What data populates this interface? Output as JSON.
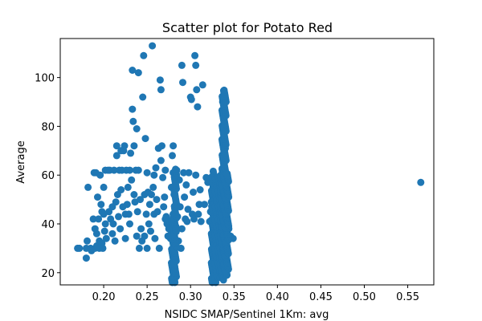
{
  "chart_data": {
    "type": "scatter",
    "title": "Scatter plot for Potato Red",
    "xlabel": "NSIDC SMAP/Sentinel 1Km: avg",
    "ylabel": "Average",
    "xlim": [
      0.15,
      0.58
    ],
    "ylim": [
      15,
      116
    ],
    "xticks": [
      "0.20",
      "0.25",
      "0.30",
      "0.35",
      "0.40",
      "0.45",
      "0.50",
      "0.55"
    ],
    "yticks": [
      "20",
      "40",
      "60",
      "80",
      "100"
    ],
    "marker_color": "#1f77b4",
    "grid": false,
    "series": [
      {
        "points": [
          [
            0.17,
            30
          ],
          [
            0.172,
            30
          ],
          [
            0.18,
            26
          ],
          [
            0.18,
            30
          ],
          [
            0.181,
            33
          ],
          [
            0.182,
            55
          ],
          [
            0.185,
            30
          ],
          [
            0.186,
            29
          ],
          [
            0.188,
            42
          ],
          [
            0.189,
            61
          ],
          [
            0.19,
            30
          ],
          [
            0.19,
            38
          ],
          [
            0.191,
            61
          ],
          [
            0.192,
            31
          ],
          [
            0.192,
            36
          ],
          [
            0.193,
            51
          ],
          [
            0.194,
            42
          ],
          [
            0.195,
            30
          ],
          [
            0.195,
            33
          ],
          [
            0.196,
            60
          ],
          [
            0.197,
            48
          ],
          [
            0.198,
            45
          ],
          [
            0.198,
            32
          ],
          [
            0.199,
            30
          ],
          [
            0.2,
            55
          ],
          [
            0.2,
            44
          ],
          [
            0.201,
            37
          ],
          [
            0.202,
            40
          ],
          [
            0.202,
            62
          ],
          [
            0.203,
            34
          ],
          [
            0.205,
            62
          ],
          [
            0.206,
            45
          ],
          [
            0.207,
            62
          ],
          [
            0.208,
            42
          ],
          [
            0.21,
            47
          ],
          [
            0.21,
            36
          ],
          [
            0.211,
            40
          ],
          [
            0.212,
            62
          ],
          [
            0.213,
            33
          ],
          [
            0.214,
            49
          ],
          [
            0.215,
            68
          ],
          [
            0.215,
            72
          ],
          [
            0.216,
            52
          ],
          [
            0.217,
            43
          ],
          [
            0.218,
            62
          ],
          [
            0.219,
            38
          ],
          [
            0.22,
            70
          ],
          [
            0.22,
            54
          ],
          [
            0.221,
            62
          ],
          [
            0.222,
            47
          ],
          [
            0.223,
            70
          ],
          [
            0.224,
            72
          ],
          [
            0.225,
            44
          ],
          [
            0.225,
            34
          ],
          [
            0.226,
            62
          ],
          [
            0.227,
            48
          ],
          [
            0.228,
            55
          ],
          [
            0.229,
            44
          ],
          [
            0.23,
            40
          ],
          [
            0.23,
            62
          ],
          [
            0.231,
            69
          ],
          [
            0.232,
            58
          ],
          [
            0.233,
            87
          ],
          [
            0.233,
            103
          ],
          [
            0.234,
            82
          ],
          [
            0.235,
            52
          ],
          [
            0.235,
            72
          ],
          [
            0.236,
            49
          ],
          [
            0.237,
            62
          ],
          [
            0.238,
            79
          ],
          [
            0.238,
            35
          ],
          [
            0.239,
            45
          ],
          [
            0.24,
            102
          ],
          [
            0.24,
            62
          ],
          [
            0.241,
            30
          ],
          [
            0.242,
            50
          ],
          [
            0.243,
            38
          ],
          [
            0.244,
            33
          ],
          [
            0.245,
            92
          ],
          [
            0.246,
            109
          ],
          [
            0.247,
            52
          ],
          [
            0.247,
            35
          ],
          [
            0.248,
            75
          ],
          [
            0.249,
            44
          ],
          [
            0.25,
            61
          ],
          [
            0.25,
            30
          ],
          [
            0.251,
            53
          ],
          [
            0.252,
            40
          ],
          [
            0.253,
            48
          ],
          [
            0.254,
            37
          ],
          [
            0.255,
            52
          ],
          [
            0.256,
            113
          ],
          [
            0.257,
            55
          ],
          [
            0.258,
            60
          ],
          [
            0.258,
            44
          ],
          [
            0.259,
            34
          ],
          [
            0.26,
            63
          ],
          [
            0.261,
            50
          ],
          [
            0.262,
            45
          ],
          [
            0.263,
            71
          ],
          [
            0.264,
            30
          ],
          [
            0.265,
            99
          ],
          [
            0.266,
            66
          ],
          [
            0.266,
            95
          ],
          [
            0.267,
            72
          ],
          [
            0.268,
            59
          ],
          [
            0.269,
            47
          ],
          [
            0.27,
            51
          ],
          [
            0.271,
            42
          ],
          [
            0.271,
            62
          ],
          [
            0.272,
            43
          ],
          [
            0.273,
            40
          ],
          [
            0.274,
            35
          ],
          [
            0.275,
            38
          ],
          [
            0.276,
            41
          ],
          [
            0.277,
            34
          ],
          [
            0.278,
            37
          ],
          [
            0.278,
            55
          ],
          [
            0.279,
            68
          ],
          [
            0.28,
            72
          ],
          [
            0.28,
            61
          ],
          [
            0.281,
            52
          ],
          [
            0.282,
            45
          ],
          [
            0.283,
            39
          ],
          [
            0.284,
            62
          ],
          [
            0.285,
            43
          ],
          [
            0.286,
            33
          ],
          [
            0.287,
            58
          ],
          [
            0.288,
            47
          ],
          [
            0.289,
            30
          ],
          [
            0.29,
            38
          ],
          [
            0.29,
            105
          ],
          [
            0.291,
            98
          ],
          [
            0.292,
            61
          ],
          [
            0.293,
            51
          ],
          [
            0.294,
            42
          ],
          [
            0.295,
            56
          ],
          [
            0.296,
            41
          ],
          [
            0.297,
            46
          ],
          [
            0.298,
            61
          ],
          [
            0.3,
            92
          ],
          [
            0.301,
            91
          ],
          [
            0.302,
            44
          ],
          [
            0.303,
            53
          ],
          [
            0.304,
            42
          ],
          [
            0.305,
            109
          ],
          [
            0.306,
            105
          ],
          [
            0.306,
            60
          ],
          [
            0.307,
            95
          ],
          [
            0.308,
            88
          ],
          [
            0.309,
            44
          ],
          [
            0.31,
            48
          ],
          [
            0.311,
            54
          ],
          [
            0.312,
            41
          ],
          [
            0.314,
            97
          ],
          [
            0.316,
            48
          ],
          [
            0.318,
            59
          ],
          [
            0.32,
            57
          ],
          [
            0.322,
            41
          ],
          [
            0.323,
            45
          ],
          [
            0.324,
            49
          ],
          [
            0.326,
            55
          ],
          [
            0.328,
            31
          ],
          [
            0.33,
            45
          ],
          [
            0.332,
            55
          ],
          [
            0.334,
            48
          ],
          [
            0.336,
            40
          ],
          [
            0.337,
            90
          ],
          [
            0.338,
            87
          ],
          [
            0.339,
            80
          ],
          [
            0.34,
            71
          ],
          [
            0.341,
            60
          ],
          [
            0.342,
            52
          ],
          [
            0.343,
            46
          ],
          [
            0.344,
            38
          ],
          [
            0.346,
            35
          ],
          [
            0.349,
            34
          ],
          [
            0.565,
            57
          ]
        ],
        "columns": [
          {
            "x": 0.279,
            "ymin": 16,
            "ymax": 44
          },
          {
            "x": 0.282,
            "ymin": 16,
            "ymax": 63
          },
          {
            "x": 0.325,
            "ymin": 16,
            "ymax": 62
          },
          {
            "x": 0.329,
            "ymin": 16,
            "ymax": 59
          },
          {
            "x": 0.333,
            "ymin": 20,
            "ymax": 60
          },
          {
            "x": 0.335,
            "ymin": 18,
            "ymax": 61
          },
          {
            "x": 0.337,
            "ymin": 17,
            "ymax": 95
          },
          {
            "x": 0.339,
            "ymin": 18,
            "ymax": 95
          },
          {
            "x": 0.342,
            "ymin": 19,
            "ymax": 61
          }
        ]
      }
    ]
  }
}
